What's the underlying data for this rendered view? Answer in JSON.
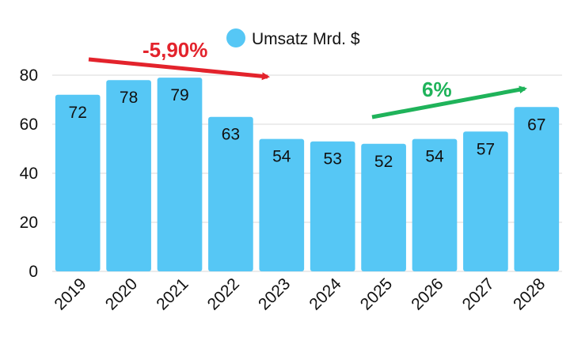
{
  "chart_data": {
    "type": "bar",
    "categories": [
      "2019",
      "2020",
      "2021",
      "2022",
      "2023",
      "2024",
      "2025",
      "2026",
      "2027",
      "2028"
    ],
    "series": [
      {
        "name": "Umsatz Mrd. $",
        "values": [
          72,
          78,
          79,
          63,
          54,
          53,
          52,
          54,
          57,
          67
        ],
        "color": "#56C7F5"
      }
    ],
    "ylim": [
      0,
      80
    ],
    "yticks": [
      "0",
      "20",
      "40",
      "60",
      "80"
    ],
    "grid": true,
    "legend": "top-center",
    "data_labels": true,
    "annotations": [
      {
        "text": "-5,90%",
        "color": "#E3232C",
        "direction": "down",
        "from_category": "2019",
        "to_category": "2023"
      },
      {
        "text": "6%",
        "color": "#1FB35A",
        "direction": "up",
        "from_category": "2025",
        "to_category": "2028"
      }
    ]
  }
}
